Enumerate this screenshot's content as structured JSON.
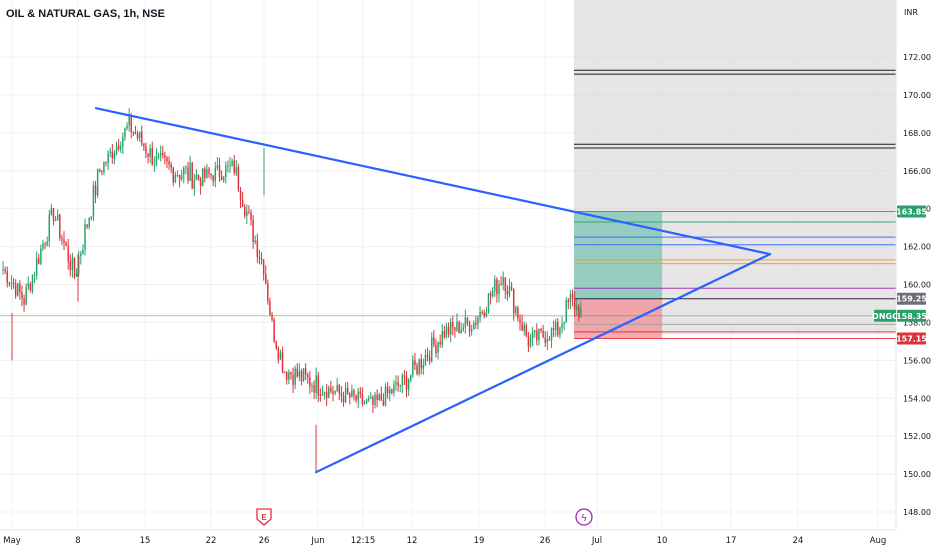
{
  "header": {
    "title": "OIL & NATURAL GAS, 1h, NSE"
  },
  "currency": "INR",
  "badges": {
    "earnings": "E",
    "dividend": "ϟ"
  },
  "price_tags": [
    {
      "label": "",
      "value": "163.85",
      "color": "#26a269"
    },
    {
      "label": "",
      "value": "159.25",
      "color": "#6b6f7a"
    },
    {
      "label": "ONGC",
      "value": "158.35",
      "color": "#26a269"
    },
    {
      "label": "",
      "value": "157.15",
      "color": "#e0313b"
    }
  ],
  "colors": {
    "up": "#26a269",
    "down": "#e0313b",
    "trendline": "#2962ff",
    "grid": "#eef0f3",
    "shade_zone": "#d5d0d2",
    "profit_zone": "#7bc4b3",
    "loss_zone": "#f28f95"
  },
  "chart_data": {
    "type": "candlestick",
    "title": "OIL & NATURAL GAS, 1h, NSE",
    "y_unit": "INR",
    "ylim": [
      147,
      176
    ],
    "y_ticks": [
      "148.00",
      "150.00",
      "152.00",
      "154.00",
      "156.00",
      "158.00",
      "160.00",
      "162.00",
      "164.00",
      "166.00",
      "168.00",
      "170.00",
      "172.00"
    ],
    "x_ticks": [
      "May",
      "8",
      "15",
      "22",
      "26",
      "Jun",
      "12:15",
      "12",
      "19",
      "26",
      "Jul",
      "10",
      "17",
      "24",
      "Aug"
    ],
    "grid": true,
    "price_segments": [
      {
        "bars": 10,
        "from": 160.8,
        "to": 159.2,
        "amp": 0.5
      },
      {
        "bars": 14,
        "from": 159.2,
        "to": 163.8,
        "amp": 0.6
      },
      {
        "bars": 10,
        "from": 163.8,
        "to": 160.5,
        "amp": 0.6
      },
      {
        "bars": 12,
        "from": 160.5,
        "to": 166.0,
        "amp": 0.7
      },
      {
        "bars": 14,
        "from": 166.0,
        "to": 168.4,
        "amp": 0.5
      },
      {
        "bars": 14,
        "from": 168.4,
        "to": 166.3,
        "amp": 0.6
      },
      {
        "bars": 20,
        "from": 166.3,
        "to": 165.6,
        "amp": 0.7
      },
      {
        "bars": 16,
        "from": 165.6,
        "to": 166.2,
        "amp": 0.5
      },
      {
        "bars": 8,
        "from": 166.2,
        "to": 163.0,
        "amp": 0.6
      },
      {
        "bars": 6,
        "from": 163.0,
        "to": 161.0,
        "amp": 0.6
      },
      {
        "bars": 4,
        "from": 161.0,
        "to": 157.8,
        "amp": 0.5
      },
      {
        "bars": 6,
        "from": 157.8,
        "to": 155.5,
        "amp": 0.6
      },
      {
        "bars": 20,
        "from": 155.5,
        "to": 154.5,
        "amp": 0.6
      },
      {
        "bars": 22,
        "from": 154.5,
        "to": 153.6,
        "amp": 0.5
      },
      {
        "bars": 16,
        "from": 153.6,
        "to": 155.0,
        "amp": 0.5
      },
      {
        "bars": 18,
        "from": 155.0,
        "to": 157.5,
        "amp": 0.6
      },
      {
        "bars": 14,
        "from": 157.5,
        "to": 158.0,
        "amp": 0.5
      },
      {
        "bars": 14,
        "from": 158.0,
        "to": 160.5,
        "amp": 0.6
      },
      {
        "bars": 12,
        "from": 160.5,
        "to": 157.0,
        "amp": 0.6
      },
      {
        "bars": 14,
        "from": 157.0,
        "to": 157.6,
        "amp": 0.5
      },
      {
        "bars": 6,
        "from": 157.6,
        "to": 159.2,
        "amp": 0.6
      },
      {
        "bars": 6,
        "from": 159.2,
        "to": 158.35,
        "amp": 0.5
      }
    ],
    "wick_spikes": [
      {
        "date": "May 1",
        "low": 156.0
      },
      {
        "date": "May 8",
        "low": 159.1
      },
      {
        "date": "May 26",
        "high": 167.2
      },
      {
        "date": "May 31",
        "low": 150.1
      }
    ],
    "trendlines": [
      {
        "name": "descending-resistance",
        "points": [
          {
            "t": "May 9",
            "price": 169.3
          },
          {
            "t": "Jul 21",
            "price": 161.6
          }
        ]
      },
      {
        "name": "ascending-support",
        "points": [
          {
            "t": "May 31",
            "price": 150.1
          },
          {
            "t": "Jul 21",
            "price": 161.6
          }
        ]
      }
    ],
    "horizontal_levels": [
      {
        "price": 171.3,
        "color": "#000000"
      },
      {
        "price": 171.1,
        "color": "#000000"
      },
      {
        "price": 167.4,
        "color": "#000000"
      },
      {
        "price": 167.2,
        "color": "#000000"
      },
      {
        "price": 163.85,
        "color": "#26a269"
      },
      {
        "price": 163.3,
        "color": "#26a269"
      },
      {
        "price": 162.5,
        "color": "#2962ff"
      },
      {
        "price": 162.1,
        "color": "#2962ff"
      },
      {
        "price": 161.3,
        "color": "#ff9800"
      },
      {
        "price": 161.1,
        "color": "#ff9800"
      },
      {
        "price": 159.8,
        "color": "#9c27b0"
      },
      {
        "price": 159.25,
        "color": "#131722"
      },
      {
        "price": 158.35,
        "color": "#26a269"
      },
      {
        "price": 157.9,
        "color": "#9e9e9e"
      },
      {
        "price": 157.5,
        "color": "#e0313b"
      },
      {
        "price": 157.15,
        "color": "#e0313b"
      }
    ],
    "zones": [
      {
        "name": "projection-shade",
        "from": "Jun 28",
        "to": "Aug 5",
        "top": 176.0,
        "bottom": 157.4
      },
      {
        "name": "profit-target",
        "from": "Jun 28",
        "to": "Jul 10",
        "top": 163.85,
        "bottom": 159.25
      },
      {
        "name": "stop-loss",
        "from": "Jun 28",
        "to": "Jul 10",
        "top": 159.25,
        "bottom": 157.15
      }
    ],
    "last_price": 158.35
  }
}
